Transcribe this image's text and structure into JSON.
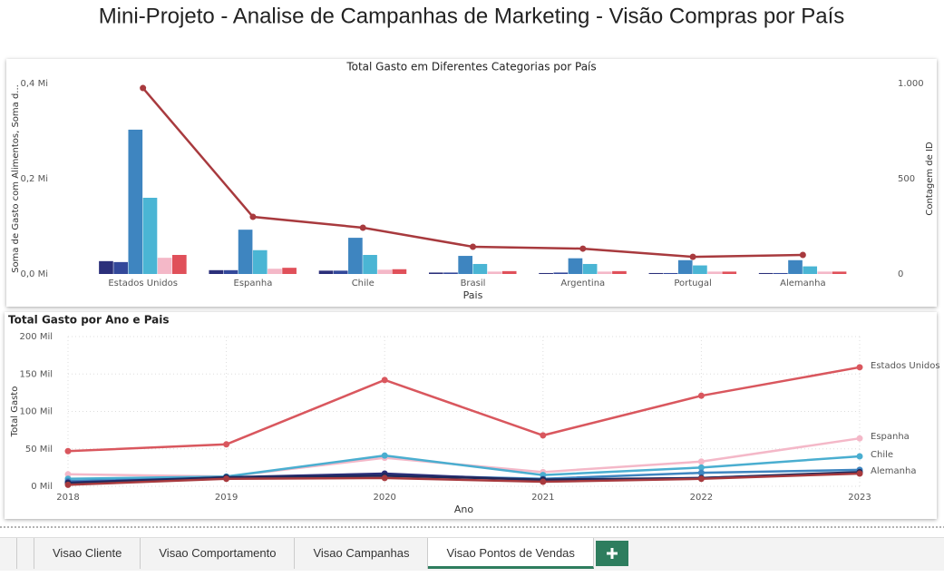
{
  "page_title": "Mini-Projeto - Analise de Campanhas de Marketing - Visão Compras por País",
  "chart_data": [
    {
      "type": "combo",
      "title": "Total Gasto em Diferentes Categorias por País",
      "x_label": "Pais",
      "y_label": "Soma de Gasto com Alimentos, Soma d...",
      "y2_label": "Contagem de ID",
      "categories": [
        "Estados Unidos",
        "Espanha",
        "Chile",
        "Brasil",
        "Argentina",
        "Portugal",
        "Alemanha"
      ],
      "ylim": [
        0,
        400000
      ],
      "yticks": [
        {
          "value": 0,
          "label": "0,0 Mi"
        },
        {
          "value": 200000,
          "label": "0,2 Mi"
        },
        {
          "value": 400000,
          "label": "0,4 Mi"
        }
      ],
      "y2lim": [
        0,
        1000
      ],
      "y2ticks": [
        0,
        500,
        {
          "value": 1000,
          "label": "1.000"
        }
      ],
      "series": [
        {
          "type": "bar",
          "color": "#2b2f7a",
          "values": [
            27000,
            8000,
            7000,
            3000,
            2000,
            2000,
            2000
          ]
        },
        {
          "type": "bar",
          "color": "#33489a",
          "values": [
            25000,
            8000,
            7000,
            3000,
            3000,
            2000,
            2000
          ]
        },
        {
          "type": "bar",
          "color": "#3e85c0",
          "values": [
            303000,
            93000,
            76000,
            38000,
            33000,
            29000,
            29000
          ]
        },
        {
          "type": "bar",
          "color": "#4ab5d4",
          "values": [
            160000,
            50000,
            40000,
            21000,
            21000,
            18000,
            16000
          ]
        },
        {
          "type": "bar",
          "color": "#f4b8c8",
          "values": [
            34000,
            11000,
            9000,
            5000,
            5000,
            5000,
            5000
          ]
        },
        {
          "type": "bar",
          "color": "#e0505a",
          "values": [
            40000,
            13000,
            10000,
            6000,
            6000,
            5000,
            5000
          ]
        },
        {
          "type": "line",
          "axis": "y2",
          "color": "#a83a3e",
          "values": [
            976,
            300,
            243,
            143,
            133,
            90,
            100
          ]
        }
      ]
    },
    {
      "type": "line",
      "title": "Total Gasto por Ano e Pais",
      "x_label": "Ano",
      "y_label": "Total Gasto",
      "x": [
        2018,
        2019,
        2020,
        2021,
        2022,
        2023
      ],
      "xlim": [
        2018,
        2023
      ],
      "xticks": [
        2018,
        2019,
        2020,
        2021,
        2022,
        2023
      ],
      "ylim": [
        0,
        200000
      ],
      "yticks": [
        {
          "value": 0,
          "label": "0 Mil"
        },
        {
          "value": 50000,
          "label": "50 Mil"
        },
        {
          "value": 100000,
          "label": "100 Mil"
        },
        {
          "value": 150000,
          "label": "150 Mil"
        },
        {
          "value": 200000,
          "label": "200 Mil"
        }
      ],
      "grid": true,
      "series": [
        {
          "name": "Estados Unidos",
          "color": "#d9575e",
          "values": [
            47000,
            56000,
            142000,
            68000,
            121000,
            159000
          ]
        },
        {
          "name": "Espanha",
          "color": "#f4b8c8",
          "values": [
            16000,
            13000,
            38000,
            19000,
            33000,
            64000
          ]
        },
        {
          "name": "Chile",
          "color": "#4aaed0",
          "values": [
            10000,
            13000,
            41000,
            15000,
            25000,
            40000
          ]
        },
        {
          "color": "#3e85c0",
          "values": [
            7000,
            11000,
            15000,
            10000,
            18000,
            22000
          ]
        },
        {
          "name": "Alemanha",
          "color": "#2b2f7a",
          "values": [
            5000,
            12000,
            17000,
            8000,
            11000,
            18000
          ]
        },
        {
          "color": "#1f2a5c",
          "values": [
            4000,
            12000,
            14000,
            9000,
            11000,
            19000
          ]
        },
        {
          "color": "#a83a3e",
          "values": [
            2000,
            10000,
            11000,
            6000,
            10000,
            17000
          ]
        }
      ]
    }
  ],
  "tabs": [
    "Visao Cliente",
    "Visao Comportamento",
    "Visao Campanhas",
    "Visao Pontos de Vendas"
  ],
  "active_tab": 3
}
